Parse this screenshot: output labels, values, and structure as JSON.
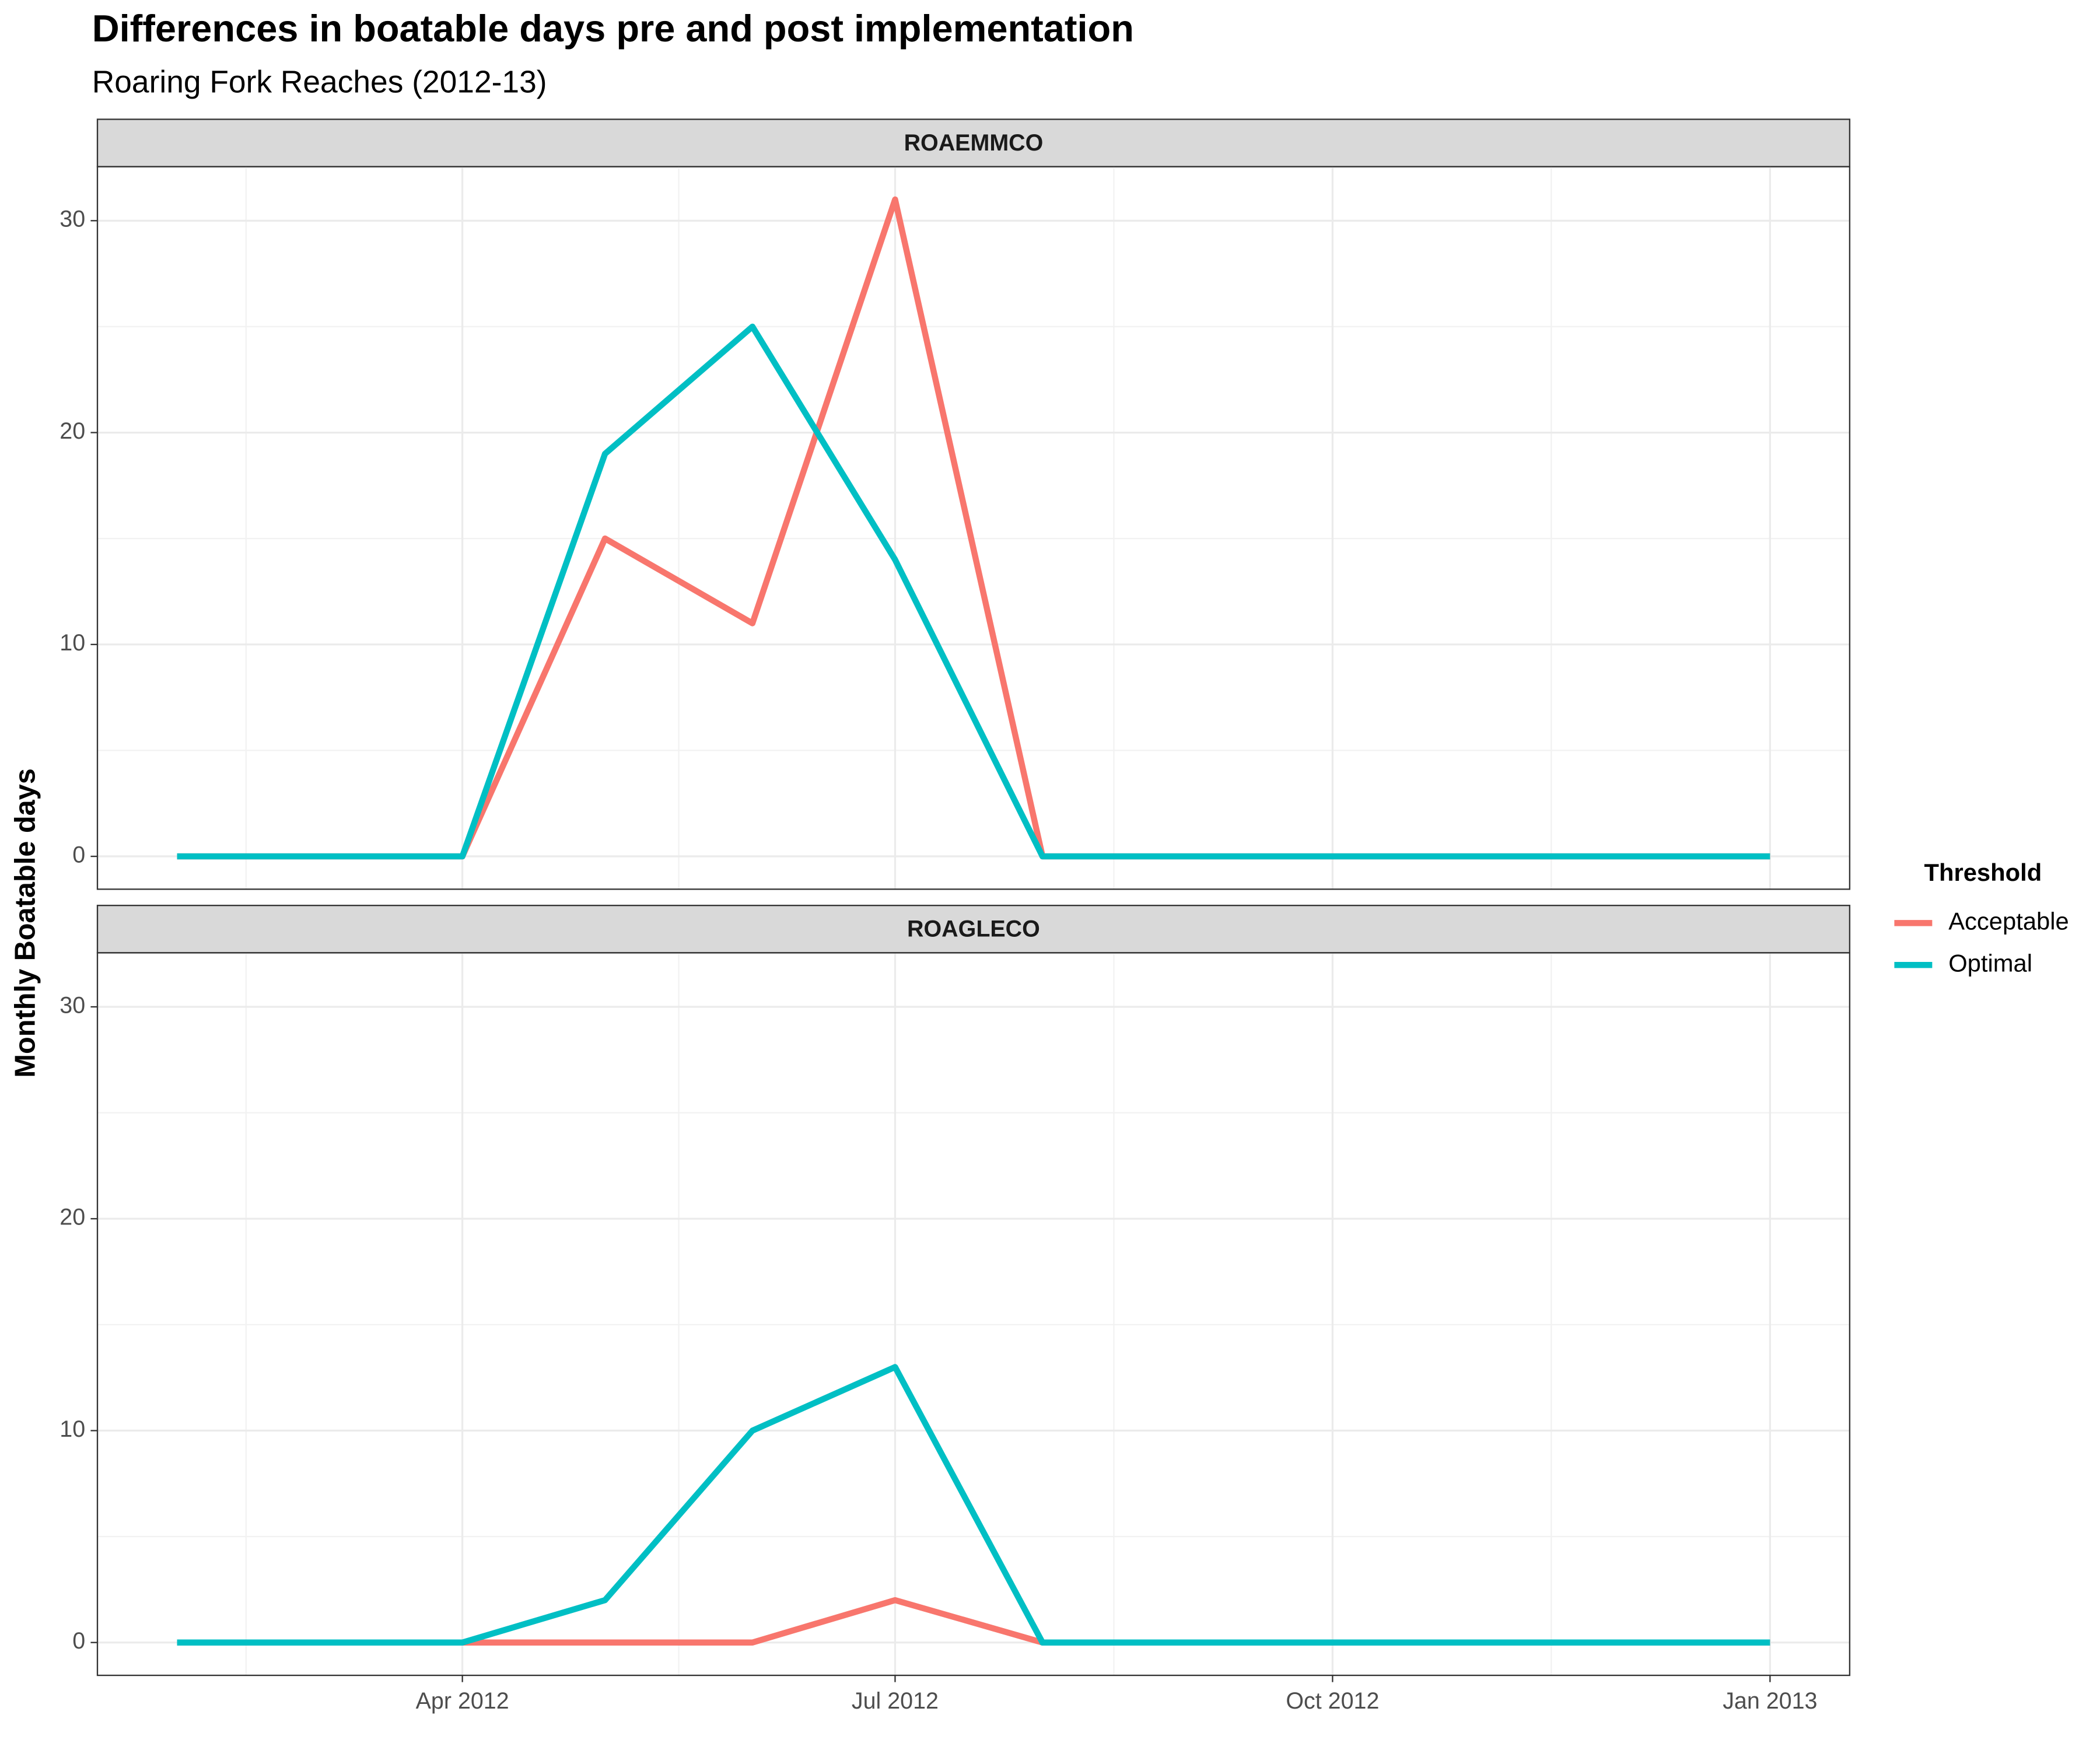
{
  "chart_data": {
    "type": "line",
    "title": "Differences in boatable days pre and post implementation",
    "subtitle": "Roaring Fork Reaches (2012-13)",
    "y_label": "Monthly Boatable days",
    "legend_title": "Threshold",
    "x": [
      "2012-02",
      "2012-03",
      "2012-04",
      "2012-05",
      "2012-06",
      "2012-07",
      "2012-08",
      "2012-09",
      "2012-10",
      "2012-11",
      "2012-12",
      "2013-01"
    ],
    "xticks": [
      {
        "value": "2012-04",
        "label": "Apr 2012"
      },
      {
        "value": "2012-07",
        "label": "Jul 2012"
      },
      {
        "value": "2012-10",
        "label": "Oct 2012"
      },
      {
        "value": "2013-01",
        "label": "Jan 2013"
      }
    ],
    "ylim": [
      -1.55,
      32.55
    ],
    "yticks": [
      0,
      10,
      20,
      30
    ],
    "grid": true,
    "legend": "right",
    "panels": [
      {
        "title": "ROAEMMCO",
        "series": [
          {
            "name": "Acceptable",
            "color": "#F8766D",
            "values": [
              0,
              0,
              0,
              15,
              11,
              31,
              0,
              0,
              0,
              0,
              0,
              0
            ]
          },
          {
            "name": "Optimal",
            "color": "#00BFC4",
            "values": [
              0,
              0,
              0,
              19,
              25,
              14,
              0,
              0,
              0,
              0,
              0,
              0
            ]
          }
        ]
      },
      {
        "title": "ROAGLECO",
        "series": [
          {
            "name": "Acceptable",
            "color": "#F8766D",
            "values": [
              0,
              0,
              0,
              0,
              0,
              2,
              0,
              0,
              0,
              0,
              0,
              0
            ]
          },
          {
            "name": "Optimal",
            "color": "#00BFC4",
            "values": [
              0,
              0,
              0,
              2,
              10,
              13,
              0,
              0,
              0,
              0,
              0,
              0
            ]
          }
        ]
      }
    ]
  }
}
